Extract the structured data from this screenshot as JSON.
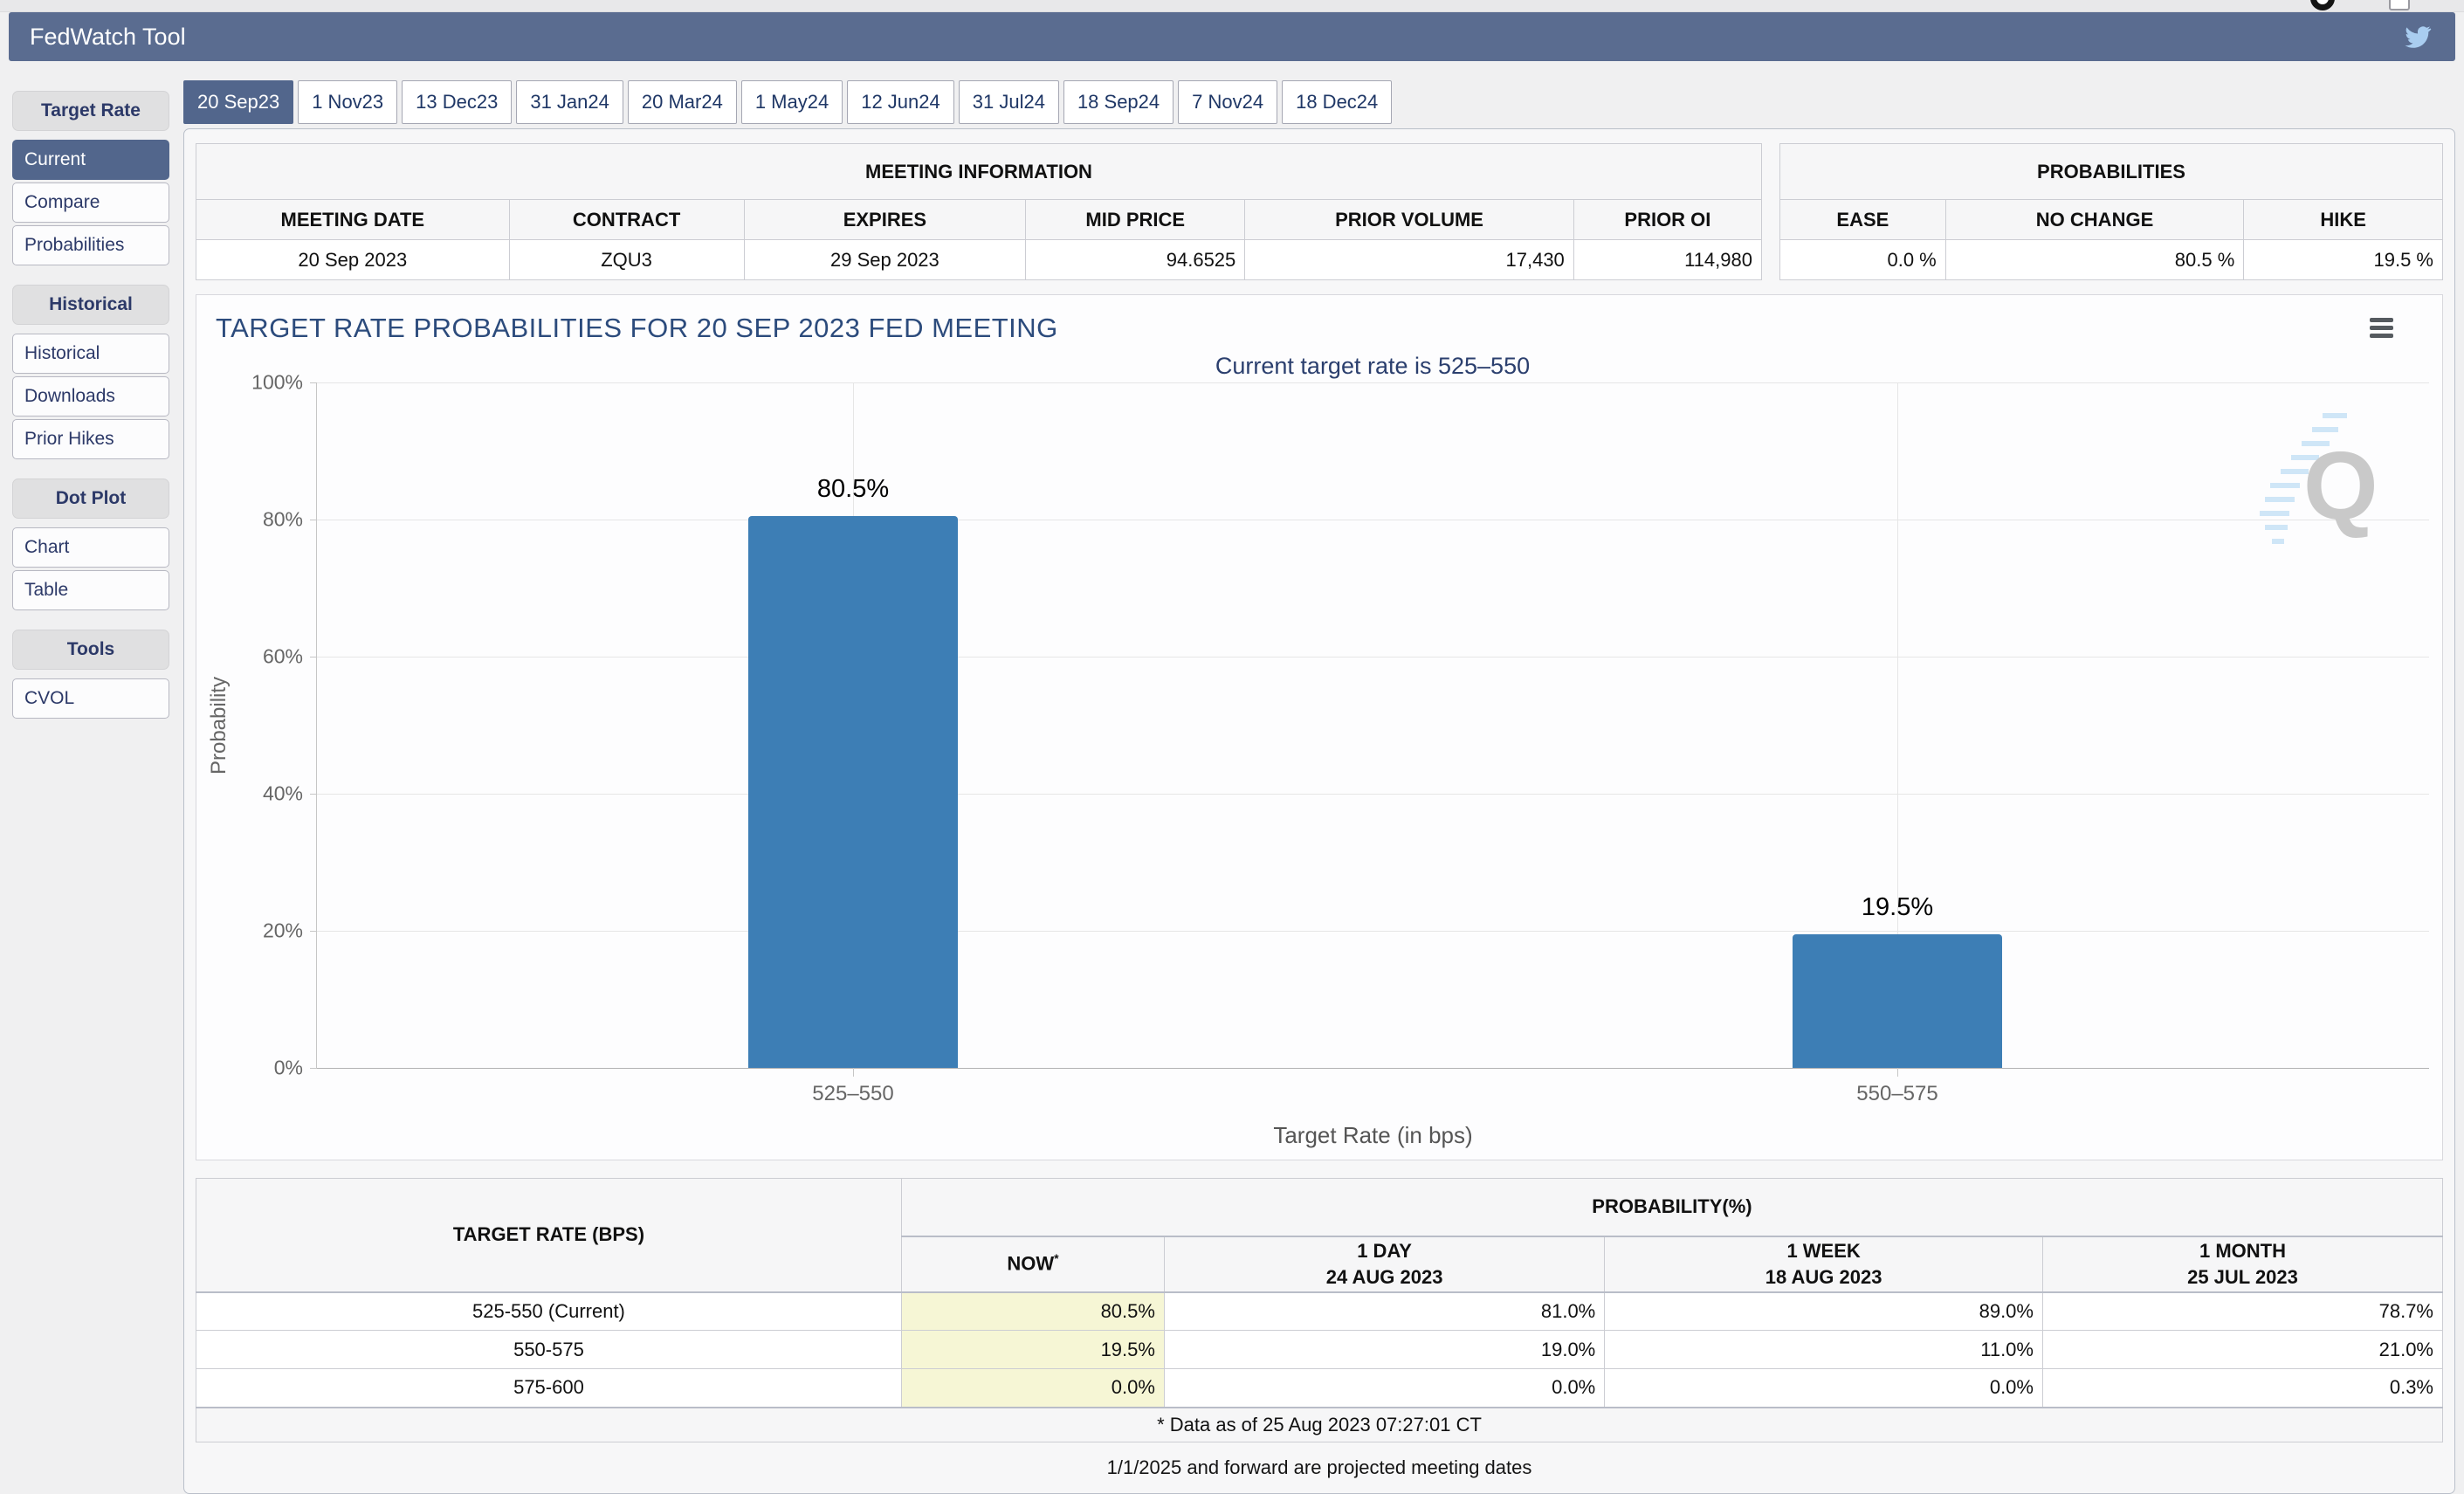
{
  "header": {
    "title": "FedWatch Tool"
  },
  "sidebar": {
    "sections": [
      {
        "label": "Target Rate",
        "items": [
          {
            "label": "Current",
            "selected": true
          },
          {
            "label": "Compare"
          },
          {
            "label": "Probabilities"
          }
        ]
      },
      {
        "label": "Historical",
        "items": [
          {
            "label": "Historical"
          },
          {
            "label": "Downloads"
          },
          {
            "label": "Prior Hikes"
          }
        ]
      },
      {
        "label": "Dot Plot",
        "items": [
          {
            "label": "Chart"
          },
          {
            "label": "Table"
          }
        ]
      },
      {
        "label": "Tools",
        "items": [
          {
            "label": "CVOL"
          }
        ]
      }
    ]
  },
  "tabs": [
    {
      "label": "20 Sep23",
      "selected": true
    },
    {
      "label": "1 Nov23"
    },
    {
      "label": "13 Dec23"
    },
    {
      "label": "31 Jan24"
    },
    {
      "label": "20 Mar24"
    },
    {
      "label": "1 May24"
    },
    {
      "label": "12 Jun24"
    },
    {
      "label": "31 Jul24"
    },
    {
      "label": "18 Sep24"
    },
    {
      "label": "7 Nov24"
    },
    {
      "label": "18 Dec24"
    }
  ],
  "meeting_information": {
    "title": "MEETING INFORMATION",
    "columns": [
      "MEETING DATE",
      "CONTRACT",
      "EXPIRES",
      "MID PRICE",
      "PRIOR VOLUME",
      "PRIOR OI"
    ],
    "values": [
      "20 Sep 2023",
      "ZQU3",
      "29 Sep 2023",
      "94.6525",
      "17,430",
      "114,980"
    ]
  },
  "probabilities_summary": {
    "title": "PROBABILITIES",
    "columns": [
      "EASE",
      "NO CHANGE",
      "HIKE"
    ],
    "values": [
      "0.0 %",
      "80.5 %",
      "19.5 %"
    ]
  },
  "chart_data": {
    "type": "bar",
    "title": "TARGET RATE PROBABILITIES FOR 20 SEP 2023 FED MEETING",
    "subtitle": "Current target rate is 525–550",
    "categories": [
      "525–550",
      "550–575"
    ],
    "values": [
      80.5,
      19.5
    ],
    "value_labels": [
      "80.5%",
      "19.5%"
    ],
    "xlabel": "Target Rate (in bps)",
    "ylabel": "Probability",
    "ylim": [
      0,
      100
    ],
    "yticks": [
      "100%",
      "80%",
      "60%",
      "40%",
      "20%",
      "0%"
    ],
    "grid": true,
    "legend": "none",
    "bar_color": "#3d7eb5",
    "watermark_letter": "Q"
  },
  "probability_table": {
    "rate_header": "TARGET RATE (BPS)",
    "group_header": "PROBABILITY(%)",
    "col_now": "NOW",
    "col_now_sup": "*",
    "col_day_line1": "1 DAY",
    "col_day_line2": "24 AUG 2023",
    "col_week_line1": "1 WEEK",
    "col_week_line2": "18 AUG 2023",
    "col_month_line1": "1 MONTH",
    "col_month_line2": "25 JUL 2023",
    "rows": [
      {
        "rate": "525-550 (Current)",
        "now": "80.5%",
        "day": "81.0%",
        "week": "89.0%",
        "month": "78.7%"
      },
      {
        "rate": "550-575",
        "now": "19.5%",
        "day": "19.0%",
        "week": "11.0%",
        "month": "21.0%"
      },
      {
        "rate": "575-600",
        "now": "0.0%",
        "day": "0.0%",
        "week": "0.0%",
        "month": "0.3%"
      }
    ],
    "footnote": "* Data as of 25 Aug 2023 07:27:01 CT"
  },
  "footer_note": "1/1/2025 and forward are projected meeting dates",
  "colors": {
    "header_bar": "#5a6c90",
    "selected": "#52668c",
    "bar": "#3d7eb5",
    "now_column": "#f6f6d5",
    "navy_text": "#2c3968"
  }
}
